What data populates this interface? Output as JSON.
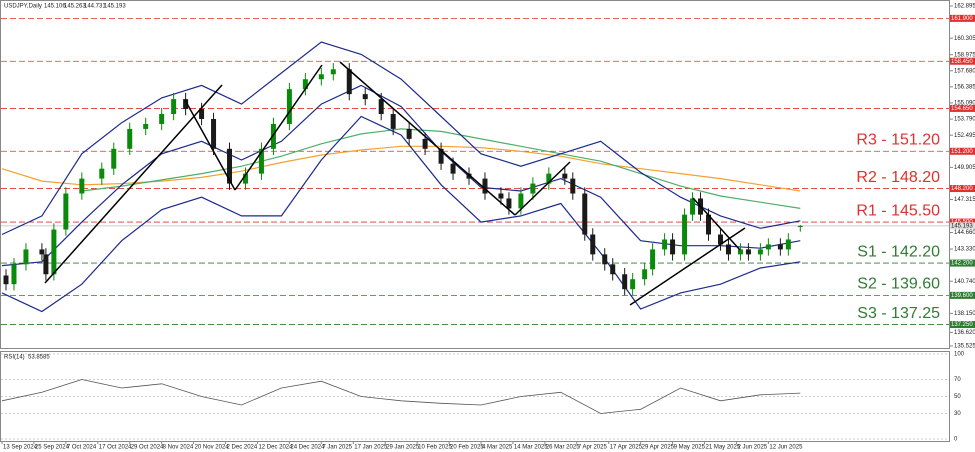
{
  "header": {
    "symbol": "USDJPY,Daily"
  },
  "chart_data": {
    "type": "candlestick",
    "x": [
      1,
      3,
      6,
      10,
      11,
      13,
      16,
      20,
      25,
      28,
      32,
      36,
      40,
      43,
      46,
      50,
      53,
      57,
      61,
      65,
      68,
      72,
      76,
      80,
      83,
      87,
      91,
      95,
      98,
      102,
      106,
      110,
      113,
      117,
      121,
      125,
      127,
      130,
      133,
      137,
      141,
      143,
      146,
      148,
      151,
      153,
      156,
      158,
      161,
      163,
      166,
      168,
      171,
      173,
      175,
      177,
      180,
      182,
      185,
      187,
      190,
      192,
      195,
      197,
      200
    ],
    "open": [
      141.2,
      140.5,
      142.1,
      143.3,
      142.9,
      141.3,
      144.9,
      147.8,
      149.0,
      149.8,
      151.4,
      153.0,
      153.4,
      154.2,
      155.4,
      154.6,
      153.8,
      151.4,
      148.6,
      149.4,
      151.4,
      153.4,
      156.2,
      157.0,
      157.4,
      157.8,
      155.8,
      155.4,
      154.2,
      153.0,
      152.2,
      151.4,
      150.2,
      149.4,
      149.0,
      147.8,
      147.4,
      146.6,
      147.8,
      148.6,
      149.4,
      149.0,
      147.8,
      144.5,
      142.9,
      142.1,
      141.3,
      140.1,
      140.9,
      141.7,
      143.3,
      144.1,
      142.9,
      146.1,
      147.4,
      146.1,
      144.5,
      143.7,
      142.9,
      143.3,
      142.9,
      143.3,
      143.7,
      143.3,
      145.106
    ],
    "high": [
      141.7,
      142.6,
      143.8,
      143.8,
      143.4,
      145.4,
      148.3,
      149.5,
      150.3,
      151.9,
      153.5,
      153.9,
      154.7,
      155.9,
      155.9,
      155.1,
      154.3,
      151.9,
      149.9,
      151.9,
      153.9,
      156.7,
      157.5,
      157.9,
      158.3,
      158.3,
      156.3,
      155.9,
      154.7,
      153.5,
      152.7,
      151.9,
      150.7,
      149.9,
      149.5,
      148.3,
      147.9,
      148.3,
      149.1,
      149.9,
      149.9,
      149.5,
      148.3,
      145.0,
      143.4,
      142.6,
      141.8,
      141.4,
      142.2,
      143.8,
      144.6,
      144.6,
      146.6,
      147.9,
      147.9,
      146.6,
      145.0,
      144.2,
      143.8,
      143.8,
      143.8,
      144.2,
      144.2,
      144.6,
      145.263
    ],
    "low": [
      140.0,
      140.0,
      141.6,
      142.4,
      140.8,
      140.8,
      144.4,
      147.3,
      148.5,
      149.3,
      150.9,
      152.5,
      152.9,
      153.7,
      154.1,
      153.3,
      150.9,
      148.1,
      148.1,
      148.9,
      150.9,
      152.9,
      155.7,
      156.5,
      156.9,
      155.3,
      154.9,
      153.7,
      152.5,
      151.7,
      150.9,
      149.7,
      148.9,
      148.5,
      147.3,
      146.9,
      146.1,
      146.1,
      147.3,
      148.1,
      148.5,
      147.3,
      144.0,
      142.4,
      141.6,
      140.8,
      139.6,
      139.6,
      140.4,
      141.2,
      142.8,
      142.4,
      142.4,
      145.6,
      145.6,
      144.0,
      143.2,
      142.4,
      142.4,
      142.4,
      142.4,
      142.8,
      142.8,
      142.8,
      144.731
    ],
    "close": [
      140.5,
      142.1,
      143.3,
      142.9,
      141.3,
      144.9,
      147.8,
      149.0,
      149.8,
      151.4,
      153.0,
      153.4,
      154.2,
      155.4,
      154.6,
      153.8,
      151.4,
      148.6,
      149.4,
      151.4,
      153.4,
      156.2,
      157.0,
      157.4,
      157.8,
      155.8,
      155.4,
      154.2,
      153.0,
      152.2,
      151.4,
      150.2,
      149.4,
      149.0,
      147.8,
      147.4,
      146.6,
      147.8,
      148.6,
      149.4,
      149.0,
      147.8,
      144.5,
      142.9,
      142.1,
      141.3,
      140.1,
      140.9,
      141.7,
      143.3,
      144.1,
      142.9,
      146.1,
      147.4,
      146.1,
      144.5,
      143.7,
      142.9,
      143.3,
      142.9,
      143.3,
      143.7,
      143.3,
      144.1,
      145.193
    ],
    "up_color": "#0a8a0a",
    "down_color": "#1a1a1a",
    "xlim": [
      0,
      237
    ],
    "ylim": [
      135.525,
      162.895
    ],
    "xticks": [
      {
        "value": 0,
        "label": "13 Sep 2024"
      },
      {
        "value": 8,
        "label": "25 Sep 2024"
      },
      {
        "value": 16,
        "label": "7 Oct 2024"
      },
      {
        "value": 24,
        "label": "17 Oct 2024"
      },
      {
        "value": 32,
        "label": "29 Oct 2024"
      },
      {
        "value": 40,
        "label": "8 Nov 2024"
      },
      {
        "value": 48,
        "label": "20 Nov 2024"
      },
      {
        "value": 56,
        "label": "2 Dec 2024"
      },
      {
        "value": 64,
        "label": "12 Dec 2024"
      },
      {
        "value": 72,
        "label": "24 Dec 2024"
      },
      {
        "value": 80,
        "label": "7 Jan 2025"
      },
      {
        "value": 88,
        "label": "17 Jan 2025"
      },
      {
        "value": 96,
        "label": "29 Jan 2025"
      },
      {
        "value": 104,
        "label": "10 Feb 2025"
      },
      {
        "value": 112,
        "label": "20 Feb 2025"
      },
      {
        "value": 120,
        "label": "4 Mar 2025"
      },
      {
        "value": 128,
        "label": "14 Mar 2025"
      },
      {
        "value": 136,
        "label": "26 Mar 2025"
      },
      {
        "value": 144,
        "label": "7 Apr 2025"
      },
      {
        "value": 152,
        "label": "17 Apr 2025"
      },
      {
        "value": 160,
        "label": "29 Apr 2025"
      },
      {
        "value": 168,
        "label": "9 May 2025"
      },
      {
        "value": 176,
        "label": "21 May 2025"
      },
      {
        "value": 184,
        "label": "2 Jun 2025"
      },
      {
        "value": 192,
        "label": "12 Jun 2025"
      }
    ],
    "yticks": [
      162.895,
      160.305,
      158.975,
      {
        "value": 157.68,
        "label": "157.680"
      },
      156.385,
      {
        "value": 155.09,
        "label": "155.090"
      },
      {
        "value": 153.79,
        "label": "153.790"
      },
      152.495,
      149.905,
      147.315,
      {
        "value": 144.66,
        "label": "144.660"
      },
      {
        "value": 143.33,
        "label": "143.330"
      },
      {
        "value": 140.74,
        "label": "140.740"
      },
      {
        "value": 138.15,
        "label": "138.150"
      },
      {
        "value": 136.62,
        "label": "136.620"
      },
      135.525
    ],
    "overlay_x": [
      0,
      10,
      20,
      30,
      40,
      50,
      60,
      70,
      80,
      90,
      100,
      110,
      120,
      130,
      140,
      150,
      160,
      170,
      180,
      190,
      200
    ],
    "overlays": [
      {
        "color": "#f5a033",
        "values": [
          149.8,
          148.8,
          148.5,
          148.6,
          148.8,
          149.1,
          149.6,
          150.3,
          150.9,
          151.3,
          151.6,
          151.6,
          151.5,
          151.2,
          150.8,
          150.2,
          149.8,
          149.4,
          149.0,
          148.5,
          148.0
        ]
      },
      {
        "color": "#4caf6a",
        "values": [
          null,
          null,
          148.0,
          148.4,
          148.9,
          149.4,
          150.0,
          150.8,
          151.8,
          152.6,
          153.0,
          152.8,
          152.2,
          151.6,
          151.0,
          150.4,
          149.4,
          148.4,
          147.6,
          147.1,
          146.6
        ]
      },
      {
        "color": "#1c2a8c",
        "values": [
          144.5,
          146.0,
          151.0,
          153.5,
          155.5,
          156.5,
          155.0,
          157.5,
          160.0,
          159.0,
          157.0,
          154.0,
          151.0,
          150.0,
          151.0,
          152.0,
          149.5,
          147.5,
          146.0,
          145.0,
          145.6
        ]
      },
      {
        "color": "#1c2a8c",
        "values": [
          142.0,
          142.3,
          145.5,
          148.5,
          151.0,
          152.0,
          150.5,
          152.0,
          155.0,
          156.5,
          154.8,
          151.2,
          148.3,
          148.0,
          149.0,
          147.5,
          144.0,
          143.6,
          143.6,
          143.4,
          144.0
        ]
      },
      {
        "color": "#1c2a8c",
        "values": [
          139.8,
          138.3,
          140.5,
          144.0,
          146.5,
          147.5,
          146.0,
          146.0,
          150.5,
          154.0,
          152.5,
          148.5,
          145.5,
          146.0,
          147.0,
          143.0,
          138.5,
          139.8,
          140.5,
          141.8,
          142.3
        ]
      }
    ],
    "levels": [
      {
        "value": 161.9,
        "tag": "161.900",
        "color": "#e03030"
      },
      {
        "value": 158.45,
        "tag": "158.450",
        "color": "#e03030"
      },
      {
        "value": 154.65,
        "tag": "154.650",
        "color": "#e03030"
      },
      {
        "value": 151.2,
        "tag": "151.200",
        "label": "R3 - 151.20",
        "color": "#e03030"
      },
      {
        "value": 148.2,
        "tag": "148.200",
        "label": "R2 - 148.20",
        "color": "#e03030"
      },
      {
        "value": 145.5,
        "tag": "145.500",
        "label": "R1 - 145.50",
        "color": "#e03030"
      },
      {
        "value": 142.2,
        "tag": "142.200",
        "label": "S1 - 142.20",
        "color": "#2e7d32"
      },
      {
        "value": 139.6,
        "tag": "139.600",
        "label": "S2 - 139.60",
        "color": "#2e7d32"
      },
      {
        "value": 137.25,
        "tag": "137.250",
        "label": "S3 - 137.25",
        "color": "#2e7d32"
      }
    ],
    "indicator": {
      "title": "RSI(14)",
      "value": 53.8585,
      "color": "#555555",
      "ylim": [
        0,
        100
      ],
      "yticks": [
        100,
        70,
        50,
        30,
        0
      ],
      "values": [
        45,
        55,
        70,
        60,
        65,
        50,
        40,
        60,
        68,
        50,
        45,
        42,
        40,
        50,
        55,
        30,
        35,
        60,
        45,
        52,
        54
      ]
    }
  }
}
